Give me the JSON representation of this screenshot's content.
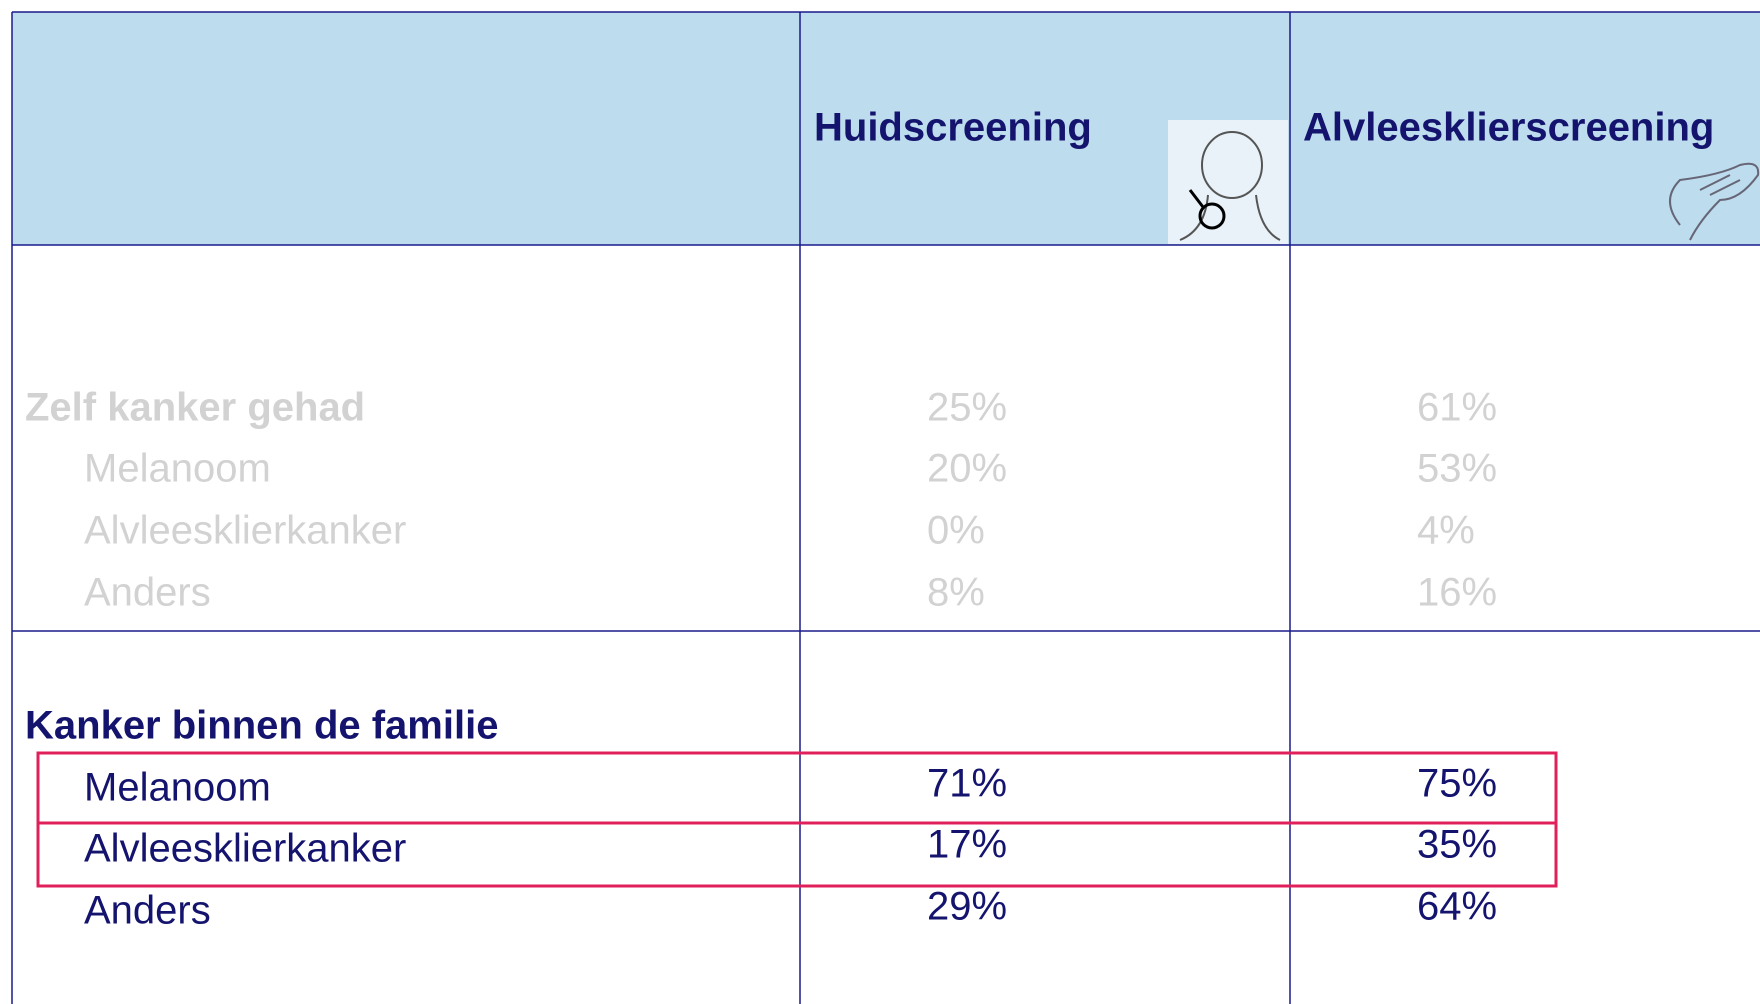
{
  "header": {
    "columns": [
      "Huidscreening",
      "Alvleesklierscreening"
    ]
  },
  "sections": [
    {
      "title": "Zelf kanker gehad",
      "values": [
        "25%",
        "61%"
      ],
      "rows": [
        {
          "label": "Melanoom",
          "values": [
            "20%",
            "53%"
          ]
        },
        {
          "label": "Alvleesklierkanker",
          "values": [
            "0%",
            "4%"
          ]
        },
        {
          "label": "Anders",
          "values": [
            "8%",
            "16%"
          ]
        }
      ]
    },
    {
      "title": "Kanker binnen de familie",
      "rows": [
        {
          "label": "Melanoom",
          "values": [
            "71%",
            "75%"
          ]
        },
        {
          "label": "Alvleesklierkanker",
          "values": [
            "17%",
            "35%"
          ]
        },
        {
          "label": "Anders",
          "values": [
            "29%",
            "64%"
          ]
        }
      ]
    }
  ]
}
